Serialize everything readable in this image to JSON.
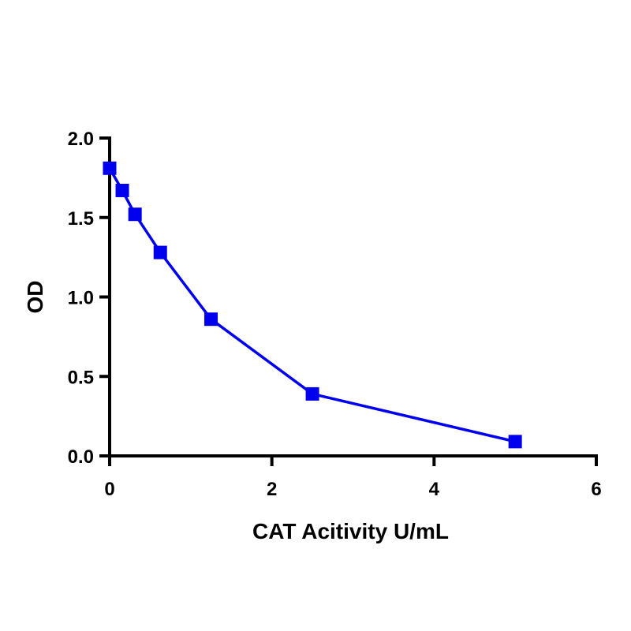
{
  "chart_data": {
    "type": "line",
    "title": "",
    "xlabel": "CAT Acitivity U/mL",
    "ylabel": "OD",
    "xlim": [
      0,
      6
    ],
    "ylim": [
      0,
      2.0
    ],
    "x_ticks": [
      0,
      2,
      4,
      6
    ],
    "x_tick_labels": [
      "0",
      "2",
      "4",
      "6"
    ],
    "y_ticks": [
      0,
      0.5,
      1.0,
      1.5,
      2.0
    ],
    "y_tick_labels": [
      "0.0",
      "0.5",
      "1.0",
      "1.5",
      "2.0"
    ],
    "grid": false,
    "marker": "square",
    "series": [
      {
        "color": "#0000ee",
        "x": [
          0,
          0.156,
          0.313,
          0.625,
          1.25,
          2.5,
          5.0
        ],
        "y": [
          1.81,
          1.67,
          1.52,
          1.28,
          0.86,
          0.39,
          0.09
        ]
      }
    ]
  }
}
